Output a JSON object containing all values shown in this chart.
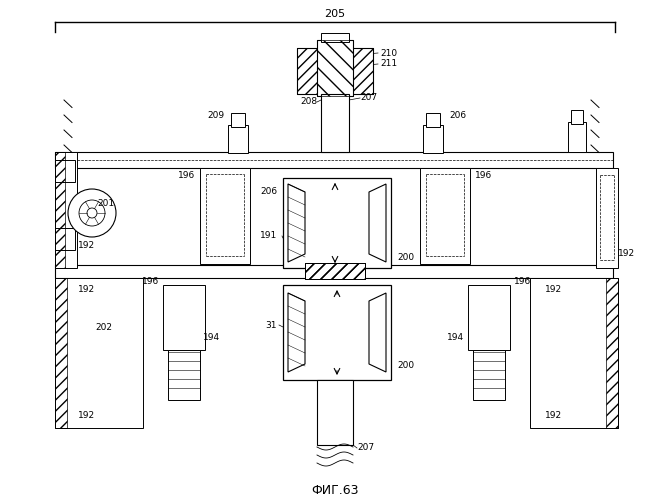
{
  "title": "ФИГ.63",
  "bg": "#ffffff"
}
